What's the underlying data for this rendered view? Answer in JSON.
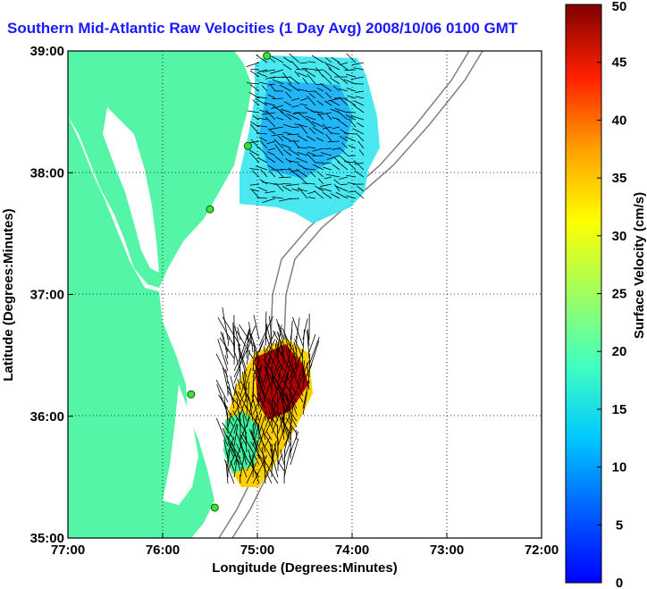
{
  "title": "Southern Mid-Atlantic Raw Velocities (1 Day Avg) 2008/10/06 0100 GMT",
  "map": {
    "xlabel": "Longitude (Degrees:Minutes)",
    "ylabel": "Latitude (Degrees:Minutes)",
    "x_ticks": [
      "77:00",
      "76:00",
      "75:00",
      "74:00",
      "73:00",
      "72:00"
    ],
    "y_ticks": [
      "39:00",
      "38:00",
      "37:00",
      "36:00",
      "35:00"
    ],
    "lon_range": [
      -77,
      -72
    ],
    "lat_range": [
      35,
      39
    ],
    "grid": "dotted",
    "land_color": "#55f5a8",
    "stations": [
      {
        "lon": -74.9,
        "lat": 38.96
      },
      {
        "lon": -75.1,
        "lat": 38.22
      },
      {
        "lon": -75.5,
        "lat": 37.7
      },
      {
        "lon": -75.7,
        "lat": 36.18
      },
      {
        "lon": -75.45,
        "lat": 35.25
      }
    ]
  },
  "colorbar": {
    "label": "Surface Velocity (cm/s)",
    "ticks": [
      "0",
      "5",
      "10",
      "15",
      "20",
      "25",
      "30",
      "35",
      "40",
      "45",
      "50"
    ],
    "range": [
      0,
      50
    ]
  }
}
